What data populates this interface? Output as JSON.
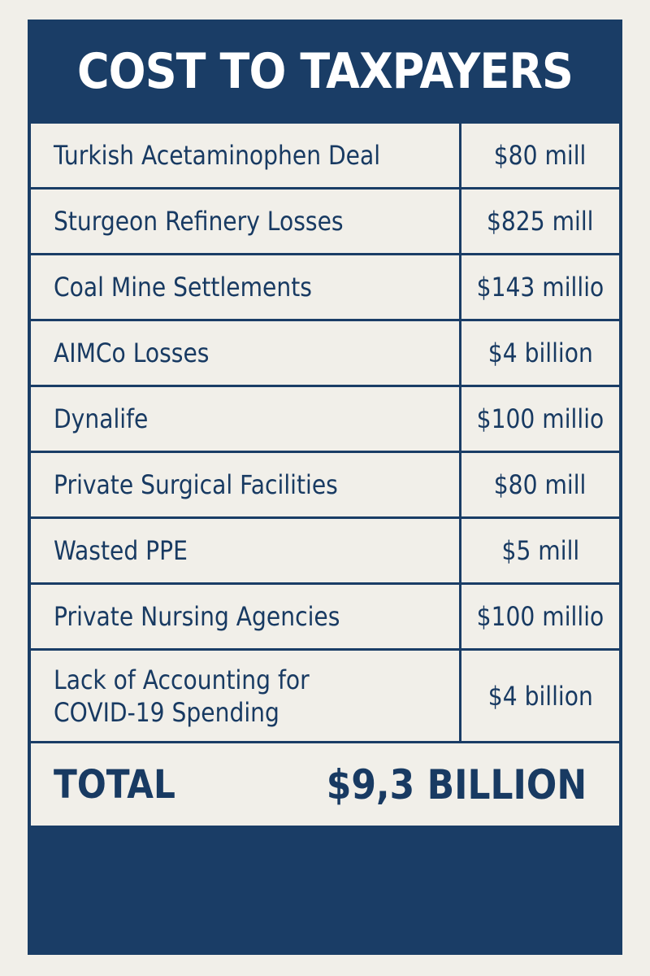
{
  "header": {
    "title": "COST TO TAXPAYERS"
  },
  "rows": [
    {
      "item": "Turkish Acetaminophen Deal",
      "amount": "$80 mill"
    },
    {
      "item": "Sturgeon Refinery Losses",
      "amount": "$825 mill"
    },
    {
      "item": "Coal Mine Settlements",
      "amount": "$143 millio"
    },
    {
      "item": "AIMCo Losses",
      "amount": "$4 billion"
    },
    {
      "item": "Dynalife",
      "amount": "$100 millio"
    },
    {
      "item": "Private Surgical Facilities",
      "amount": "$80 mill"
    },
    {
      "item": "Wasted PPE",
      "amount": "$5 mill"
    },
    {
      "item": "Private Nursing Agencies",
      "amount": "$100 millio"
    },
    {
      "item": "Lack of Accounting for\nCOVID-19 Spending",
      "amount": "$4 billion"
    }
  ],
  "total": {
    "label": "TOTAL",
    "value": "$9,3 BILLION"
  },
  "colors": {
    "navy": "#1a3d66",
    "paper": "#f1efe9",
    "text": "#183a62"
  }
}
